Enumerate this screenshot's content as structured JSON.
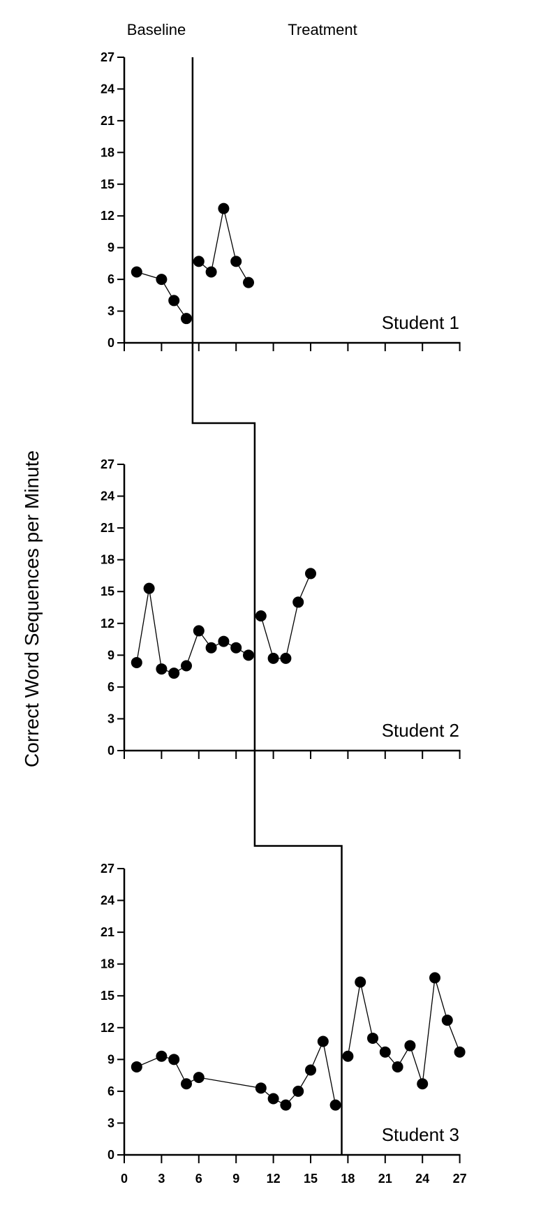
{
  "chart_data": {
    "type": "line",
    "ylabel": "Correct Word Sequences per Minute",
    "phase_labels": [
      "Baseline",
      "Treatment"
    ],
    "x_ticks": [
      "0",
      "3",
      "6",
      "9",
      "12",
      "15",
      "18",
      "21",
      "24",
      "27"
    ],
    "y_ticks": [
      "0",
      "3",
      "6",
      "9",
      "12",
      "15",
      "18",
      "21",
      "24",
      "27"
    ],
    "xlim": [
      0,
      27
    ],
    "ylim": [
      0,
      27
    ],
    "panels": [
      {
        "label": "Student 1",
        "phase_change_after_session": 5.5,
        "series": [
          {
            "phase": "Baseline",
            "x": [
              1,
              3,
              4,
              5
            ],
            "y": [
              6.7,
              6.0,
              4.0,
              2.3
            ]
          },
          {
            "phase": "Treatment",
            "x": [
              6,
              7,
              8,
              9,
              10
            ],
            "y": [
              7.7,
              6.7,
              12.7,
              7.7,
              5.7
            ]
          }
        ]
      },
      {
        "label": "Student 2",
        "phase_change_after_session": 10.5,
        "series": [
          {
            "phase": "Baseline",
            "x": [
              1,
              2,
              3,
              4,
              5,
              6,
              7,
              8,
              9,
              10
            ],
            "y": [
              8.3,
              15.3,
              7.7,
              7.3,
              8.0,
              11.3,
              9.7,
              10.3,
              9.7,
              9.0
            ]
          },
          {
            "phase": "Treatment",
            "x": [
              11,
              12,
              13,
              14,
              15
            ],
            "y": [
              12.7,
              8.7,
              8.7,
              14.0,
              16.7
            ]
          }
        ]
      },
      {
        "label": "Student 3",
        "phase_change_after_session": 17.5,
        "series": [
          {
            "phase": "Baseline",
            "x": [
              1,
              3,
              4,
              5,
              6,
              11,
              12,
              13,
              14,
              15,
              16,
              17
            ],
            "y": [
              8.3,
              9.3,
              9.0,
              6.7,
              7.3,
              6.3,
              5.3,
              4.7,
              6.0,
              8.0,
              10.7,
              4.7
            ]
          },
          {
            "phase": "Treatment",
            "x": [
              18,
              19,
              20,
              21,
              22,
              23,
              24,
              25,
              26,
              27
            ],
            "y": [
              9.3,
              16.3,
              11.0,
              9.7,
              8.3,
              10.3,
              6.7,
              16.7,
              12.7,
              9.7
            ]
          }
        ]
      }
    ]
  }
}
